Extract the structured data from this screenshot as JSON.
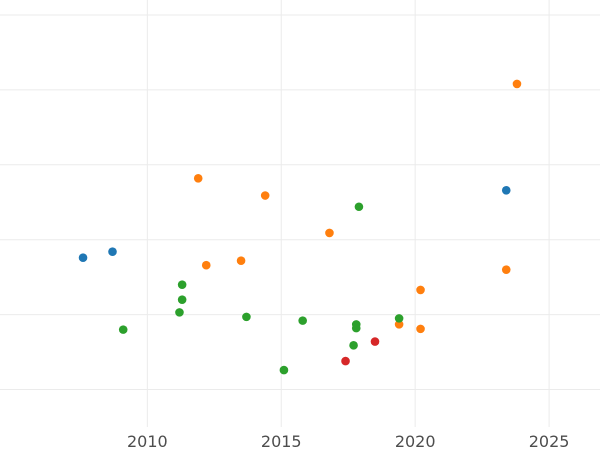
{
  "chart_data": {
    "type": "scatter",
    "title": "",
    "xlabel": "",
    "ylabel": "",
    "xlim": [
      2004.5,
      2026.9
    ],
    "ylim": [
      -0.5,
      5.2
    ],
    "x_ticks": [
      2010,
      2015,
      2020,
      2025
    ],
    "x_tick_labels": [
      "2010",
      "2015",
      "2020",
      "2025"
    ],
    "y_gridlines": [
      0,
      1,
      2,
      3,
      4,
      5
    ],
    "grid": true,
    "legend": "none",
    "series": [
      {
        "color": "#1f77b4",
        "points": [
          {
            "x": 2007.6,
            "y": 1.76
          },
          {
            "x": 2008.7,
            "y": 1.84
          },
          {
            "x": 2023.4,
            "y": 2.66
          }
        ]
      },
      {
        "color": "#ff7f0e",
        "points": [
          {
            "x": 2011.9,
            "y": 2.82
          },
          {
            "x": 2014.4,
            "y": 2.59
          },
          {
            "x": 2016.8,
            "y": 2.09
          },
          {
            "x": 2012.2,
            "y": 1.66
          },
          {
            "x": 2013.5,
            "y": 1.72
          },
          {
            "x": 2023.8,
            "y": 4.08
          },
          {
            "x": 2023.4,
            "y": 1.6
          },
          {
            "x": 2020.2,
            "y": 1.33
          },
          {
            "x": 2019.4,
            "y": 0.87
          },
          {
            "x": 2020.2,
            "y": 0.81
          }
        ]
      },
      {
        "color": "#2ca02c",
        "points": [
          {
            "x": 2009.1,
            "y": 0.8
          },
          {
            "x": 2011.3,
            "y": 1.4
          },
          {
            "x": 2011.3,
            "y": 1.2
          },
          {
            "x": 2011.2,
            "y": 1.03
          },
          {
            "x": 2013.7,
            "y": 0.97
          },
          {
            "x": 2015.1,
            "y": 0.26
          },
          {
            "x": 2015.8,
            "y": 0.92
          },
          {
            "x": 2017.8,
            "y": 0.82
          },
          {
            "x": 2017.8,
            "y": 0.87
          },
          {
            "x": 2017.7,
            "y": 0.59
          },
          {
            "x": 2017.9,
            "y": 2.44
          },
          {
            "x": 2019.4,
            "y": 0.95
          }
        ]
      },
      {
        "color": "#d62728",
        "points": [
          {
            "x": 2017.4,
            "y": 0.38
          },
          {
            "x": 2018.5,
            "y": 0.64
          }
        ]
      }
    ]
  }
}
